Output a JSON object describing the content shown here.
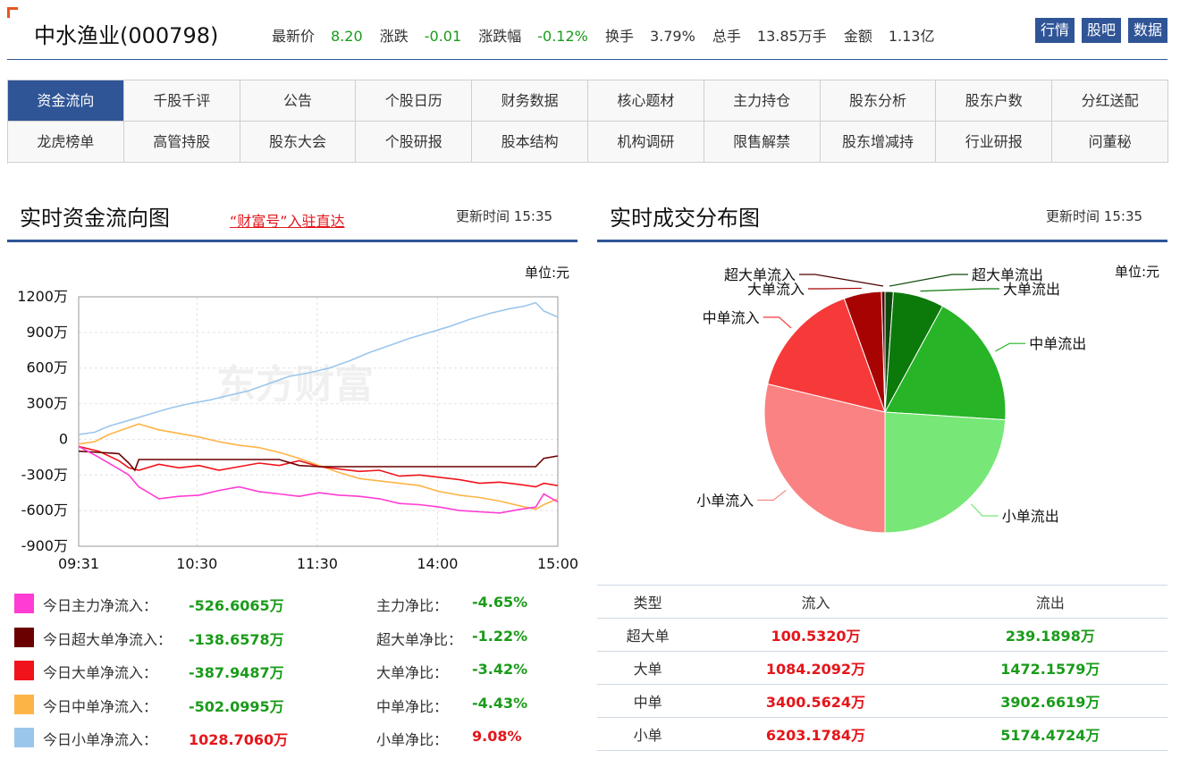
{
  "header": {
    "stock_name": "中水渔业(000798)",
    "quote": [
      {
        "label": "最新价",
        "value": "8.20",
        "color": "green"
      },
      {
        "label": "涨跌",
        "value": "-0.01",
        "color": "green"
      },
      {
        "label": "涨跌幅",
        "value": "-0.12%",
        "color": "green"
      },
      {
        "label": "换手",
        "value": "3.79%",
        "color": "plain"
      },
      {
        "label": "总手",
        "value": "13.85万手",
        "color": "plain"
      },
      {
        "label": "金额",
        "value": "1.13亿",
        "color": "plain"
      }
    ],
    "buttons": [
      "行情",
      "股吧",
      "数据"
    ]
  },
  "nav": {
    "row1": [
      "资金流向",
      "千股千评",
      "公告",
      "个股日历",
      "财务数据",
      "核心题材",
      "主力持仓",
      "股东分析",
      "股东户数",
      "分红送配"
    ],
    "row2": [
      "龙虎榜单",
      "高管持股",
      "股东大会",
      "个股研报",
      "股本结构",
      "机构调研",
      "限售解禁",
      "股东增减持",
      "行业研报",
      "问董秘"
    ],
    "active": "资金流向"
  },
  "left_section": {
    "title": "实时资金流向图",
    "link": "“财富号”入驻直达",
    "update_label": "更新时间",
    "update_time": "15:35",
    "unit": "单位:元"
  },
  "right_section": {
    "title": "实时成交分布图",
    "update_label": "更新时间",
    "update_time": "15:35",
    "unit": "单位:元"
  },
  "colors": {
    "main": "#ff3cd4",
    "super": "#6b0000",
    "large": "#f0131c",
    "medium": "#fdb447",
    "small": "#9bc6ec",
    "brand": "#2f5597",
    "up": "#e4161b",
    "down": "#1a9b1a"
  },
  "chart_data": [
    {
      "type": "line",
      "ylim": [
        -900,
        1200
      ],
      "y_ticks": [
        "1200万",
        "900万",
        "600万",
        "300万",
        "0",
        "-300万",
        "-600万",
        "-900万"
      ],
      "y_tick_values": [
        1200,
        900,
        600,
        300,
        0,
        -300,
        -600,
        -900
      ],
      "x_ticks": [
        "09:31",
        "10:30",
        "11:30",
        "14:00",
        "15:00"
      ],
      "x_tick_positions": [
        0,
        59,
        119,
        179,
        239
      ],
      "x_range": [
        0,
        239
      ],
      "grid": true,
      "watermark": "东方财富",
      "series": [
        {
          "key": "small",
          "points": [
            [
              0,
              40
            ],
            [
              8,
              60
            ],
            [
              15,
              110
            ],
            [
              25,
              160
            ],
            [
              35,
              210
            ],
            [
              45,
              260
            ],
            [
              55,
              300
            ],
            [
              65,
              330
            ],
            [
              75,
              370
            ],
            [
              85,
              410
            ],
            [
              95,
              470
            ],
            [
              105,
              530
            ],
            [
              115,
              560
            ],
            [
              125,
              600
            ],
            [
              135,
              660
            ],
            [
              145,
              730
            ],
            [
              155,
              790
            ],
            [
              165,
              850
            ],
            [
              175,
              900
            ],
            [
              185,
              950
            ],
            [
              195,
              1010
            ],
            [
              205,
              1060
            ],
            [
              215,
              1100
            ],
            [
              222,
              1120
            ],
            [
              228,
              1150
            ],
            [
              232,
              1080
            ],
            [
              239,
              1030
            ]
          ]
        },
        {
          "key": "medium",
          "points": [
            [
              0,
              -40
            ],
            [
              8,
              -20
            ],
            [
              15,
              40
            ],
            [
              25,
              100
            ],
            [
              30,
              130
            ],
            [
              40,
              80
            ],
            [
              50,
              50
            ],
            [
              60,
              20
            ],
            [
              70,
              -20
            ],
            [
              80,
              -50
            ],
            [
              90,
              -70
            ],
            [
              100,
              -110
            ],
            [
              110,
              -160
            ],
            [
              120,
              -220
            ],
            [
              130,
              -280
            ],
            [
              140,
              -330
            ],
            [
              150,
              -350
            ],
            [
              160,
              -370
            ],
            [
              170,
              -390
            ],
            [
              180,
              -440
            ],
            [
              190,
              -470
            ],
            [
              200,
              -490
            ],
            [
              210,
              -520
            ],
            [
              220,
              -560
            ],
            [
              228,
              -590
            ],
            [
              232,
              -550
            ],
            [
              239,
              -500
            ]
          ]
        },
        {
          "key": "large",
          "points": [
            [
              0,
              -60
            ],
            [
              10,
              -100
            ],
            [
              20,
              -180
            ],
            [
              25,
              -240
            ],
            [
              30,
              -260
            ],
            [
              40,
              -210
            ],
            [
              50,
              -240
            ],
            [
              60,
              -220
            ],
            [
              70,
              -260
            ],
            [
              80,
              -230
            ],
            [
              90,
              -200
            ],
            [
              100,
              -220
            ],
            [
              110,
              -180
            ],
            [
              120,
              -230
            ],
            [
              130,
              -250
            ],
            [
              140,
              -270
            ],
            [
              150,
              -260
            ],
            [
              160,
              -310
            ],
            [
              170,
              -300
            ],
            [
              180,
              -320
            ],
            [
              190,
              -340
            ],
            [
              200,
              -370
            ],
            [
              210,
              -360
            ],
            [
              220,
              -380
            ],
            [
              228,
              -400
            ],
            [
              232,
              -370
            ],
            [
              239,
              -390
            ]
          ]
        },
        {
          "key": "super",
          "points": [
            [
              0,
              -100
            ],
            [
              10,
              -110
            ],
            [
              20,
              -120
            ],
            [
              25,
              -200
            ],
            [
              28,
              -260
            ],
            [
              30,
              -170
            ],
            [
              40,
              -170
            ],
            [
              60,
              -170
            ],
            [
              80,
              -170
            ],
            [
              100,
              -170
            ],
            [
              110,
              -220
            ],
            [
              120,
              -230
            ],
            [
              140,
              -230
            ],
            [
              160,
              -230
            ],
            [
              180,
              -230
            ],
            [
              200,
              -230
            ],
            [
              220,
              -230
            ],
            [
              228,
              -230
            ],
            [
              232,
              -160
            ],
            [
              239,
              -140
            ]
          ]
        },
        {
          "key": "main",
          "points": [
            [
              0,
              -60
            ],
            [
              10,
              -150
            ],
            [
              20,
              -250
            ],
            [
              25,
              -300
            ],
            [
              30,
              -400
            ],
            [
              35,
              -450
            ],
            [
              40,
              -500
            ],
            [
              50,
              -480
            ],
            [
              60,
              -470
            ],
            [
              70,
              -430
            ],
            [
              80,
              -400
            ],
            [
              90,
              -440
            ],
            [
              100,
              -460
            ],
            [
              110,
              -480
            ],
            [
              120,
              -450
            ],
            [
              130,
              -470
            ],
            [
              140,
              -480
            ],
            [
              150,
              -500
            ],
            [
              160,
              -540
            ],
            [
              170,
              -550
            ],
            [
              180,
              -570
            ],
            [
              190,
              -600
            ],
            [
              200,
              -610
            ],
            [
              210,
              -620
            ],
            [
              220,
              -590
            ],
            [
              228,
              -570
            ],
            [
              232,
              -460
            ],
            [
              239,
              -527
            ]
          ]
        }
      ]
    },
    {
      "type": "pie",
      "slices": [
        {
          "label": "超大单流出",
          "value": 239.1898,
          "color": "#0c4a0c"
        },
        {
          "label": "大单流出",
          "value": 1472.1579,
          "color": "#0b7a0b"
        },
        {
          "label": "中单流出",
          "value": 3902.6619,
          "color": "#27b427"
        },
        {
          "label": "小单流出",
          "value": 5174.4724,
          "color": "#77e777"
        },
        {
          "label": "小单流入",
          "value": 6203.1784,
          "color": "#fb8282"
        },
        {
          "label": "中单流入",
          "value": 3400.5624,
          "color": "#f63a3a"
        },
        {
          "label": "大单流入",
          "value": 1084.2092,
          "color": "#a80303"
        },
        {
          "label": "超大单流入",
          "value": 100.532,
          "color": "#4d0000"
        }
      ]
    }
  ],
  "legend": [
    {
      "key": "main",
      "label": "今日主力净流入：",
      "value": "-526.6065万",
      "ratio_label": "主力净比：",
      "ratio": "-4.65%"
    },
    {
      "key": "super",
      "label": "今日超大单净流入：",
      "value": "-138.6578万",
      "ratio_label": "超大单净比：",
      "ratio": "-1.22%"
    },
    {
      "key": "large",
      "label": "今日大单净流入：",
      "value": "-387.9487万",
      "ratio_label": "大单净比：",
      "ratio": "-3.42%"
    },
    {
      "key": "medium",
      "label": "今日中单净流入：",
      "value": "-502.0995万",
      "ratio_label": "中单净比：",
      "ratio": "-4.43%"
    },
    {
      "key": "small",
      "label": "今日小单净流入：",
      "value": "1028.7060万",
      "ratio_label": "小单净比：",
      "ratio": "9.08%"
    }
  ],
  "flow_table": {
    "headers": [
      "类型",
      "流入",
      "流出"
    ],
    "rows": [
      {
        "type": "超大单",
        "in": "100.5320万",
        "out": "239.1898万"
      },
      {
        "type": "大单",
        "in": "1084.2092万",
        "out": "1472.1579万"
      },
      {
        "type": "中单",
        "in": "3400.5624万",
        "out": "3902.6619万"
      },
      {
        "type": "小单",
        "in": "6203.1784万",
        "out": "5174.4724万"
      }
    ]
  }
}
